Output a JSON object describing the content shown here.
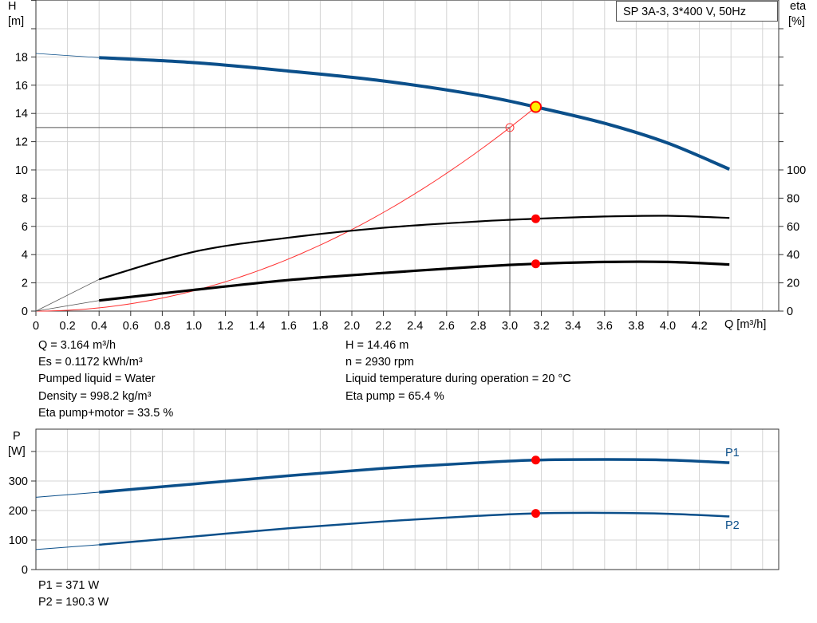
{
  "title": "SP 3A-3, 3*400 V, 50Hz",
  "chart_data": [
    {
      "type": "line",
      "xlabel": "Q [m³/h]",
      "ylabel": "H",
      "ylabel_unit": "[m]",
      "y2label": "eta",
      "y2label_unit": "[%]",
      "xlim": [
        0,
        4.7
      ],
      "ylim": [
        0,
        22
      ],
      "y2lim": [
        0,
        220
      ],
      "grid": true,
      "xticks": [
        "0",
        "0.2",
        "0.4",
        "0.6",
        "0.8",
        "1.0",
        "1.2",
        "1.4",
        "1.6",
        "1.8",
        "2.0",
        "2.2",
        "2.4",
        "2.6",
        "2.8",
        "3.0",
        "3.2",
        "3.4",
        "3.6",
        "3.8",
        "4.0",
        "4.2"
      ],
      "yticks": [
        "0",
        "2",
        "4",
        "6",
        "8",
        "10",
        "12",
        "14",
        "16",
        "18"
      ],
      "y2ticks": [
        "0",
        "20",
        "40",
        "60",
        "80",
        "100"
      ],
      "series": [
        {
          "key": "H",
          "axis": "left",
          "color": "#0b4f8a",
          "extrapolate_from": [
            0,
            18.25
          ],
          "x": [
            0.4,
            1.0,
            1.6,
            2.2,
            2.8,
            3.164,
            3.6,
            4.0,
            4.39
          ],
          "y": [
            17.95,
            17.6,
            17.0,
            16.3,
            15.3,
            14.46,
            13.3,
            11.9,
            10.05
          ]
        },
        {
          "key": "eta_pump",
          "axis": "right",
          "color": "#000000",
          "extrapolate_from": [
            0,
            0
          ],
          "x": [
            0.4,
            1.0,
            1.6,
            2.2,
            2.8,
            3.164,
            3.6,
            4.0,
            4.39
          ],
          "y": [
            22.5,
            42,
            52,
            59,
            63.5,
            65.4,
            67,
            67.5,
            66
          ]
        },
        {
          "key": "eta_total",
          "axis": "right",
          "color": "#000000",
          "extrapolate_from": [
            0,
            0
          ],
          "x": [
            0.4,
            1.0,
            1.6,
            2.2,
            2.8,
            3.164,
            3.6,
            4.0,
            4.39
          ],
          "y": [
            7.5,
            15,
            22,
            27,
            31.5,
            33.5,
            34.8,
            34.8,
            33
          ]
        }
      ],
      "system_curve": {
        "color": "#ff3030",
        "k": 1.444,
        "x_end": 3.164
      },
      "duty_point": {
        "Q": 3.164,
        "H": 14.46,
        "eta_pump": 65.4,
        "eta_total": 33.5
      },
      "requested_point": {
        "Q": 3.0,
        "H": 13.0
      }
    },
    {
      "type": "line",
      "ylabel": "P",
      "ylabel_unit": "[W]",
      "xlim": [
        0,
        4.7
      ],
      "ylim": [
        0,
        475
      ],
      "grid": true,
      "yticks": [
        "0",
        "100",
        "200",
        "300"
      ],
      "series": [
        {
          "key": "P1",
          "name": "P1",
          "color": "#0b4f8a",
          "extrapolate_from": [
            0,
            245
          ],
          "x": [
            0.4,
            1.0,
            1.6,
            2.2,
            2.8,
            3.164,
            3.6,
            4.0,
            4.39
          ],
          "y": [
            262,
            290,
            318,
            343,
            362,
            371,
            373,
            371,
            362
          ]
        },
        {
          "key": "P2",
          "name": "P2",
          "color": "#0b4f8a",
          "extrapolate_from": [
            0,
            68
          ],
          "x": [
            0.4,
            1.0,
            1.6,
            2.2,
            2.8,
            3.164,
            3.6,
            4.0,
            4.39
          ],
          "y": [
            84,
            112,
            140,
            163,
            182,
            190.3,
            192,
            189,
            180
          ]
        }
      ],
      "duty_point": {
        "Q": 3.164,
        "P1": 371,
        "P2": 190.3
      }
    }
  ],
  "info_left": [
    "Q = 3.164 m³/h",
    "Es = 0.1172 kWh/m³",
    "Pumped liquid = Water",
    "Density = 998.2 kg/m³",
    "Eta pump+motor = 33.5 %"
  ],
  "info_right": [
    "H = 14.46 m",
    "n = 2930 rpm",
    "Liquid temperature during operation = 20 °C",
    "Eta pump = 65.4 %"
  ],
  "power_info": [
    "P1 = 371 W",
    "P2 = 190.3 W"
  ]
}
